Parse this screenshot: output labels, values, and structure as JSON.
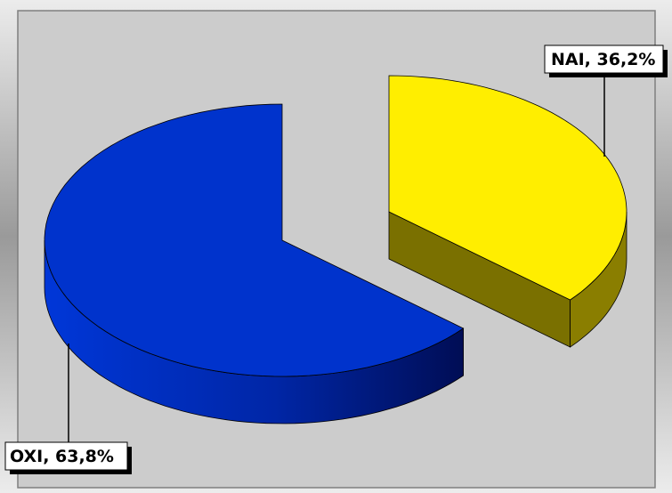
{
  "chart_data": {
    "type": "pie",
    "style": "3d-exploded",
    "series": [
      {
        "values": [
          36.2,
          63.8
        ]
      }
    ],
    "categories": [
      "NAI",
      "OXI"
    ],
    "values": [
      36.2,
      63.8
    ],
    "data_labels": [
      "NAI, 36,2%",
      "OXI, 63,8%"
    ],
    "colors": {
      "NAI": "#ffee00",
      "OXI": "#0033cc"
    },
    "plot_area_color": "#cccccc",
    "legend": "none"
  }
}
